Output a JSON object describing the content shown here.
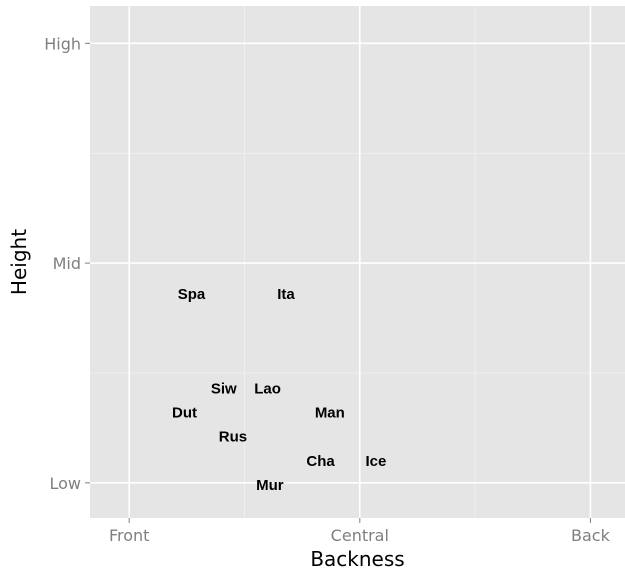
{
  "chart_data": {
    "type": "scatter",
    "title": "",
    "xlabel": "Backness",
    "ylabel": "Height",
    "xlim": [
      -0.17,
      2.15
    ],
    "ylim": [
      -0.16,
      2.17
    ],
    "grid": true,
    "x_ticks": [
      {
        "value": 0,
        "label": "Front"
      },
      {
        "value": 1,
        "label": "Central"
      },
      {
        "value": 2,
        "label": "Back"
      }
    ],
    "y_ticks": [
      {
        "value": 0,
        "label": "Low"
      },
      {
        "value": 1,
        "label": "Mid"
      },
      {
        "value": 2,
        "label": "High"
      }
    ],
    "points": [
      {
        "label": "Spa",
        "x": 0.27,
        "y": 0.86
      },
      {
        "label": "Ita",
        "x": 0.68,
        "y": 0.86
      },
      {
        "label": "Siw",
        "x": 0.41,
        "y": 0.43
      },
      {
        "label": "Lao",
        "x": 0.6,
        "y": 0.43
      },
      {
        "label": "Dut",
        "x": 0.24,
        "y": 0.32
      },
      {
        "label": "Man",
        "x": 0.87,
        "y": 0.32
      },
      {
        "label": "Rus",
        "x": 0.45,
        "y": 0.21
      },
      {
        "label": "Cha",
        "x": 0.83,
        "y": 0.1
      },
      {
        "label": "Ice",
        "x": 1.07,
        "y": 0.1
      },
      {
        "label": "Mur",
        "x": 0.61,
        "y": -0.01
      }
    ]
  }
}
